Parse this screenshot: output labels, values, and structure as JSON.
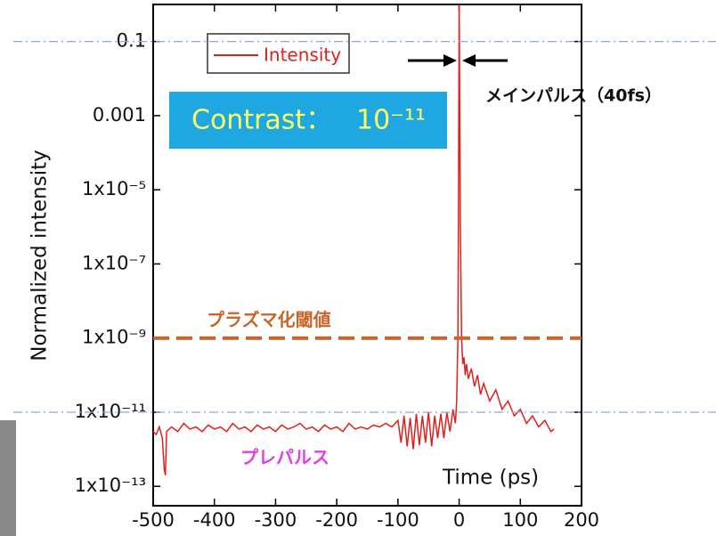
{
  "chart_data": {
    "type": "line",
    "y_label": "Normalized intensity",
    "x_label": "Time (ps)",
    "log_y": true,
    "xlim": [
      -500,
      200
    ],
    "xticks": [
      -500,
      -400,
      -300,
      -200,
      -100,
      0,
      100,
      200
    ],
    "ylim": [
      3e-14,
      1
    ],
    "yticks": [
      0.1,
      0.001,
      {
        "value": 1e-05,
        "label": "1x10⁻⁵"
      },
      {
        "value": 1e-07,
        "label": "1x10⁻⁷"
      },
      {
        "value": 1e-09,
        "label": "1x10⁻⁹"
      },
      {
        "value": 1e-11,
        "label": "1x10⁻¹¹"
      },
      {
        "value": 1e-13,
        "label": "1x10⁻¹³"
      }
    ],
    "legend": "top-left",
    "contrast": {
      "label": "Contrast：",
      "value": "10⁻¹¹"
    },
    "main_pulse_label": "メインパルス（40fs）",
    "prepulse_label": "プレパルス",
    "threshold": {
      "label": "プラズマ化閾値",
      "value": 1e-09,
      "color": "#c8642a"
    },
    "reference_lines": [
      0.1,
      1e-11
    ],
    "series": [
      {
        "name": "Intensity",
        "color": "#e0201c",
        "x": [
          -500,
          -495,
          -490,
          -485,
          -482,
          -480,
          -478,
          -470,
          -460,
          -450,
          -440,
          -430,
          -420,
          -410,
          -400,
          -390,
          -380,
          -370,
          -360,
          -350,
          -340,
          -330,
          -320,
          -310,
          -300,
          -290,
          -280,
          -270,
          -260,
          -250,
          -240,
          -230,
          -220,
          -210,
          -200,
          -190,
          -180,
          -170,
          -160,
          -150,
          -140,
          -130,
          -120,
          -110,
          -100,
          -95,
          -90,
          -85,
          -80,
          -75,
          -70,
          -65,
          -60,
          -55,
          -50,
          -45,
          -40,
          -35,
          -30,
          -25,
          -20,
          -15,
          -10,
          -6,
          -4,
          -2,
          -1,
          0,
          1,
          2,
          4,
          6,
          8,
          10,
          12,
          15,
          20,
          25,
          30,
          35,
          40,
          50,
          60,
          70,
          80,
          90,
          100,
          110,
          120,
          130,
          140,
          150,
          155
        ],
        "values": [
          3e-12,
          2.5e-12,
          4e-12,
          2e-12,
          3e-13,
          2e-13,
          3e-12,
          4e-12,
          3e-12,
          5e-12,
          3.5e-12,
          4e-12,
          3e-12,
          4.5e-12,
          3.5e-12,
          4e-12,
          3e-12,
          5e-12,
          3.5e-12,
          4e-12,
          3e-12,
          4.5e-12,
          3.5e-12,
          4e-12,
          3e-12,
          4.5e-12,
          3.5e-12,
          4e-12,
          5e-12,
          3.5e-12,
          4e-12,
          3e-12,
          4.5e-12,
          3.5e-12,
          4e-12,
          3e-12,
          5e-12,
          3.5e-12,
          4e-12,
          3.5e-12,
          4.5e-12,
          4e-12,
          5e-12,
          4e-12,
          6e-12,
          1.5e-12,
          8e-12,
          1.2e-12,
          7e-12,
          1e-12,
          9e-12,
          1.3e-12,
          8e-12,
          1.5e-12,
          1e-11,
          1.2e-12,
          8e-12,
          2e-12,
          9e-12,
          2e-12,
          1e-11,
          3e-12,
          1.2e-11,
          5e-12,
          2e-11,
          1e-09,
          1e-05,
          1,
          0.001,
          1e-06,
          1e-09,
          2e-10,
          3e-10,
          1e-10,
          2e-10,
          8e-11,
          1.5e-10,
          5e-11,
          1e-10,
          3e-11,
          6e-11,
          2e-11,
          4e-11,
          1.2e-11,
          2e-11,
          8e-12,
          1.2e-11,
          5e-12,
          8e-12,
          4e-12,
          6e-12,
          3e-12,
          3.5e-12
        ]
      }
    ]
  }
}
